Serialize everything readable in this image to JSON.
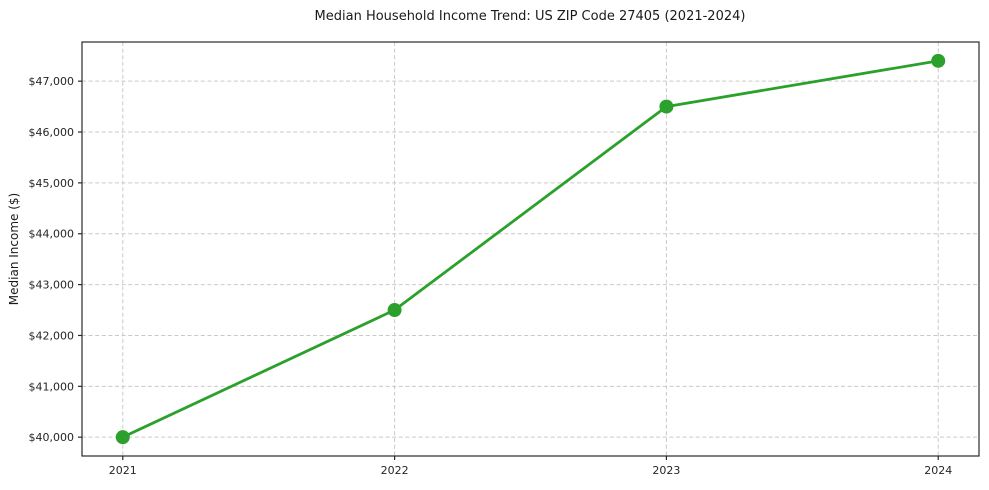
{
  "figure": {
    "title": "Median Household Income Trend: US ZIP Code 27405 (2021-2024)",
    "ylabel": "Median Income ($)"
  },
  "chart_data": {
    "type": "line",
    "title": "Median Household Income Trend: US ZIP Code 27405 (2021-2024)",
    "xlabel": "",
    "ylabel": "Median Income ($)",
    "x": [
      2021,
      2022,
      2023,
      2024
    ],
    "series": [
      {
        "name": "Median Household Income",
        "values": [
          40000,
          42500,
          46500,
          47400
        ]
      }
    ],
    "xticks": [
      2021,
      2022,
      2023,
      2024
    ],
    "xtick_labels": [
      "2021",
      "2022",
      "2023",
      "2024"
    ],
    "yticks": [
      40000,
      41000,
      42000,
      43000,
      44000,
      45000,
      46000,
      47000
    ],
    "ytick_labels": [
      "$40,000",
      "$41,000",
      "$42,000",
      "$43,000",
      "$44,000",
      "$45,000",
      "$46,000",
      "$47,000"
    ],
    "xlim": [
      2020.85,
      2024.15
    ],
    "ylim": [
      39630,
      47770
    ],
    "grid": true,
    "grid_style": "dashed",
    "legend": "none",
    "marker": "circle"
  },
  "style": {
    "line_color": "#2ca02c",
    "marker_color": "#2ca02c",
    "grid_color": "#c9c9c9",
    "spine_color": "#2a2a2a",
    "tick_color": "#2a2a2a",
    "text_color": "#1a1a1a",
    "background_color": "#ffffff"
  }
}
